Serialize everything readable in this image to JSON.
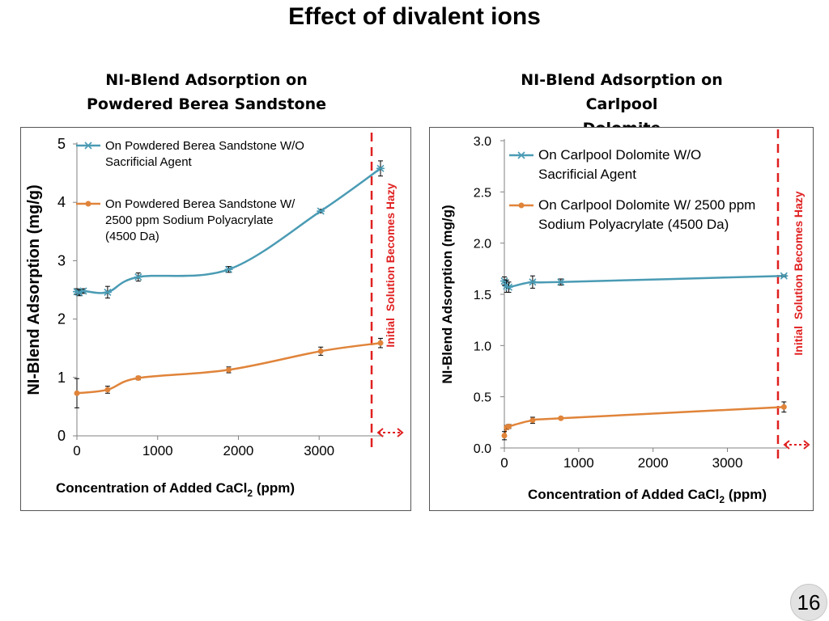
{
  "title": "Effect of divalent ions",
  "page_number": "16",
  "colors": {
    "series_blue": "#4A9BB4",
    "series_orange": "#E0843A",
    "threshold_red": "#E02020",
    "axis": "#808080"
  },
  "chart_data": [
    {
      "type": "line",
      "title_lines": [
        "NI-Blend Adsorption on",
        "Powdered Berea Sandstone"
      ],
      "xlabel": "Concentration of Added CaCl",
      "xlabel_sub": "2",
      "xlabel_suffix": " (ppm)",
      "ylabel": "NI-Blend Adsorption (mg/g)",
      "xlim": [
        0,
        3800
      ],
      "ylim": [
        0,
        5
      ],
      "xticks": [
        0,
        1000,
        2000,
        3000
      ],
      "xtick_labels": [
        "0",
        "1000",
        "2000",
        "3000"
      ],
      "yticks": [
        0,
        1,
        2,
        3,
        4,
        5
      ],
      "ytick_labels": [
        "0",
        "1",
        "2",
        "3",
        "4",
        "5"
      ],
      "series": [
        {
          "name_lines": [
            "On Powdered Berea Sandstone W/O",
            "Sacrificial Agent"
          ],
          "marker": "asterisk",
          "color_key": "series_blue",
          "x": [
            0,
            30,
            80,
            380,
            760,
            1880,
            3020,
            3760
          ],
          "y": [
            2.47,
            2.45,
            2.48,
            2.46,
            2.72,
            2.85,
            3.85,
            4.58
          ],
          "err": [
            0.05,
            0.05,
            0.04,
            0.1,
            0.07,
            0.05,
            0.03,
            0.13
          ]
        },
        {
          "name_lines": [
            "On Powdered Berea Sandstone W/",
            "2500 ppm Sodium Polyacrylate",
            "(4500 Da)"
          ],
          "marker": "circle",
          "color_key": "series_orange",
          "x": [
            0,
            380,
            760,
            1880,
            3020,
            3760
          ],
          "y": [
            0.73,
            0.79,
            0.99,
            1.13,
            1.45,
            1.59
          ],
          "err": [
            0.25,
            0.06,
            0.03,
            0.05,
            0.07,
            0.08
          ]
        }
      ],
      "threshold": {
        "x": 3650,
        "label_prefix": "Initial ",
        "label_main": "Solution Becomes Hazy"
      }
    },
    {
      "type": "line",
      "title_lines": [
        "NI-Blend Adsorption on Carlpool",
        "Dolomite"
      ],
      "xlabel": "Concentration of Added CaCl",
      "xlabel_sub": "2",
      "xlabel_suffix": " (ppm)",
      "ylabel": "NI-Blend Adsorption (mg/g)",
      "xlim": [
        0,
        3800
      ],
      "ylim": [
        0,
        3
      ],
      "xticks": [
        0,
        1000,
        2000,
        3000
      ],
      "xtick_labels": [
        "0",
        "1000",
        "2000",
        "3000"
      ],
      "yticks": [
        0,
        0.5,
        1,
        1.5,
        2,
        2.5,
        3
      ],
      "ytick_labels": [
        "0.0",
        "0.5",
        "1.0",
        "1.5",
        "2.0",
        "2.5",
        "3.0"
      ],
      "series": [
        {
          "name_lines": [
            "On Carlpool Dolomite W/O",
            "Sacrificial Agent"
          ],
          "marker": "asterisk",
          "color_key": "series_blue",
          "x": [
            0,
            30,
            60,
            380,
            760,
            3760
          ],
          "y": [
            1.63,
            1.58,
            1.57,
            1.62,
            1.62,
            1.68
          ],
          "err": [
            0.04,
            0.06,
            0.05,
            0.06,
            0.03,
            0.01
          ]
        },
        {
          "name_lines": [
            "On Carlpool Dolomite W/ 2500 ppm",
            "Sodium Polyacrylate (4500 Da)"
          ],
          "marker": "circle",
          "color_key": "series_orange",
          "x": [
            0,
            30,
            60,
            380,
            760,
            3760
          ],
          "y": [
            0.12,
            0.2,
            0.21,
            0.27,
            0.29,
            0.4
          ],
          "err": [
            0.04,
            0.02,
            0.02,
            0.03,
            0.01,
            0.05
          ]
        }
      ],
      "threshold": {
        "x": 3680,
        "label_prefix": "Initial ",
        "label_main": "Solution Becomes Hazy"
      }
    }
  ]
}
